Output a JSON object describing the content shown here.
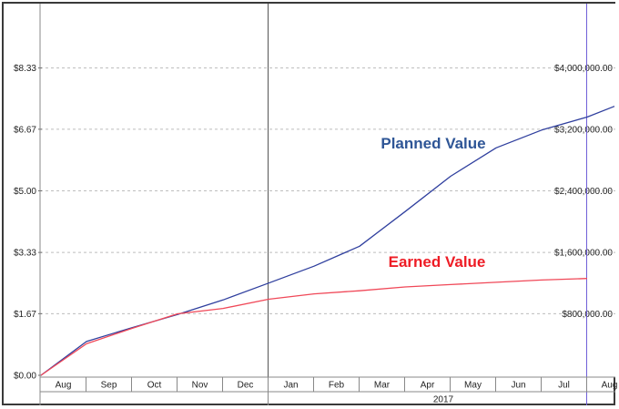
{
  "chart_data": {
    "type": "line",
    "left_axis": {
      "ticks": [
        "$0.00",
        "$1.67",
        "$3.33",
        "$5.00",
        "$6.67",
        "$8.33"
      ],
      "tick_values": [
        0,
        1.67,
        3.33,
        5.0,
        6.67,
        8.33
      ]
    },
    "right_axis": {
      "ticks": [
        "$800,000.00",
        "$1,600,000.00",
        "$2,400,000.00",
        "$3,200,000.00",
        "$4,000,000.00"
      ],
      "tick_values": [
        800000,
        1600000,
        2400000,
        3200000,
        4000000
      ],
      "ylim": [
        0,
        4800000
      ]
    },
    "months": [
      "Aug",
      "Sep",
      "Oct",
      "Nov",
      "Dec",
      "Jan",
      "Feb",
      "Mar",
      "Apr",
      "May",
      "Jun",
      "Jul",
      "Aug"
    ],
    "year_label": "2017",
    "grid": true,
    "series": [
      {
        "name": "Planned Value",
        "color": "#2f3f9e",
        "label_color": "#2e5596",
        "points": [
          {
            "m": 0,
            "v": 0
          },
          {
            "m": 1,
            "v": 440000
          },
          {
            "m": 2,
            "v": 620000
          },
          {
            "m": 3,
            "v": 790000
          },
          {
            "m": 4,
            "v": 980000
          },
          {
            "m": 5,
            "v": 1200000
          },
          {
            "m": 6,
            "v": 1420000
          },
          {
            "m": 7,
            "v": 1680000
          },
          {
            "m": 8,
            "v": 2130000
          },
          {
            "m": 9,
            "v": 2590000
          },
          {
            "m": 10,
            "v": 2960000
          },
          {
            "m": 11,
            "v": 3190000
          },
          {
            "m": 12,
            "v": 3360000
          },
          {
            "m": 12.6,
            "v": 3500000
          }
        ]
      },
      {
        "name": "Earned Value",
        "color": "#f04858",
        "label_color": "#ee1c25",
        "points": [
          {
            "m": 0,
            "v": 0
          },
          {
            "m": 1,
            "v": 410000
          },
          {
            "m": 2,
            "v": 610000
          },
          {
            "m": 3,
            "v": 800000
          },
          {
            "m": 4,
            "v": 870000
          },
          {
            "m": 5,
            "v": 990000
          },
          {
            "m": 6,
            "v": 1060000
          },
          {
            "m": 7,
            "v": 1100000
          },
          {
            "m": 8,
            "v": 1150000
          },
          {
            "m": 9,
            "v": 1180000
          },
          {
            "m": 10,
            "v": 1210000
          },
          {
            "m": 11,
            "v": 1240000
          },
          {
            "m": 12,
            "v": 1260000
          }
        ]
      }
    ],
    "markers": [
      {
        "name": "year-divider",
        "m": 5,
        "color": "#555555"
      },
      {
        "name": "status-date",
        "m": 12,
        "color": "#7060d8"
      }
    ]
  }
}
